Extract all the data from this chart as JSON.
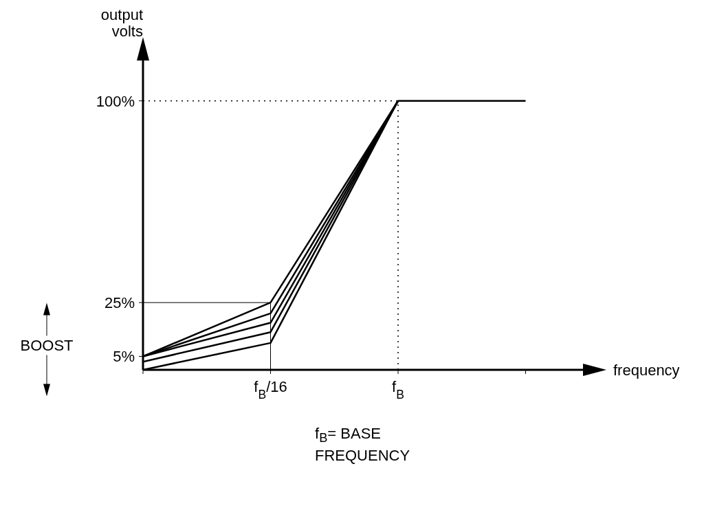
{
  "chart_data": {
    "type": "line",
    "xlabel": "frequency",
    "ylabel": "output volts",
    "categories": [
      null,
      "f$_{B}$/16",
      "f$_{B}$",
      null
    ],
    "ylim": [
      0,
      115
    ],
    "yticks": [
      {
        "value": 5,
        "label": "5%"
      },
      {
        "value": 25,
        "label": "25%"
      },
      {
        "value": 100,
        "label": "100%"
      }
    ],
    "series": [
      {
        "color": "#000000",
        "values": [
          5,
          25,
          100,
          100
        ]
      },
      {
        "color": "#000000",
        "values": [
          5,
          21,
          100,
          null
        ]
      },
      {
        "color": "#000000",
        "values": [
          5,
          17.5,
          100,
          null
        ]
      },
      {
        "color": "#000000",
        "values": [
          3,
          14,
          100,
          null
        ]
      },
      {
        "color": "#000000",
        "values": [
          0,
          10,
          100,
          null
        ]
      }
    ],
    "ref_lines": [
      {
        "axis": "y",
        "value": 100,
        "color": "#000000",
        "line_style": "dotted"
      },
      {
        "axis": "x",
        "value": "f$_{B}$",
        "color": "#000000",
        "line_style": "dotted"
      },
      {
        "axis": "y",
        "value": 25,
        "color": "#000000",
        "line_style": "solid"
      },
      {
        "axis": "x",
        "value": "f$_{B}$/16",
        "color": "#000000",
        "line_style": "solid"
      }
    ],
    "annotations": [
      "BOOST",
      "f$_{B}$= BASE FREQUENCY"
    ],
    "legend": false,
    "grid": false,
    "marker": "none",
    "line_style": "solid"
  }
}
